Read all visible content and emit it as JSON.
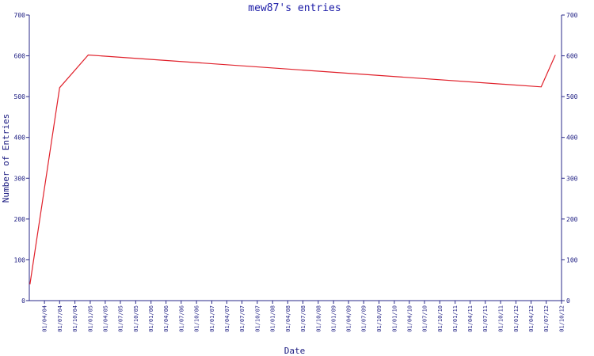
{
  "chart_data": {
    "type": "line",
    "title": "mew87's entries",
    "xlabel": "Date",
    "ylabel": "Number of Entries",
    "ylim": [
      0,
      700
    ],
    "yticks": [
      0,
      100,
      200,
      300,
      400,
      500,
      600,
      700
    ],
    "xlim": [
      "2004-01-01",
      "2012-10-01"
    ],
    "xtick_labels": [
      "01/04/04",
      "01/07/04",
      "01/10/04",
      "01/01/05",
      "01/04/05",
      "01/07/05",
      "01/10/05",
      "01/01/06",
      "01/04/06",
      "01/07/06",
      "01/10/06",
      "01/01/07",
      "01/04/07",
      "01/07/07",
      "01/10/07",
      "01/01/08",
      "01/04/08",
      "01/07/08",
      "01/10/08",
      "01/01/09",
      "01/04/09",
      "01/07/09",
      "01/10/09",
      "01/01/10",
      "01/04/10",
      "01/07/10",
      "01/10/10",
      "01/01/11",
      "01/04/11",
      "01/07/11",
      "01/10/11",
      "01/01/12",
      "01/04/12",
      "01/07/12",
      "01/10/12"
    ],
    "grid": false,
    "right_axis": true,
    "series": [
      {
        "color": "#e0202a",
        "points": [
          {
            "x": "2004-01-05",
            "y": 40
          },
          {
            "x": "2004-07-01",
            "y": 522
          },
          {
            "x": "2004-12-20",
            "y": 602
          },
          {
            "x": "2012-06-01",
            "y": 524
          },
          {
            "x": "2012-08-25",
            "y": 602
          }
        ]
      }
    ]
  }
}
